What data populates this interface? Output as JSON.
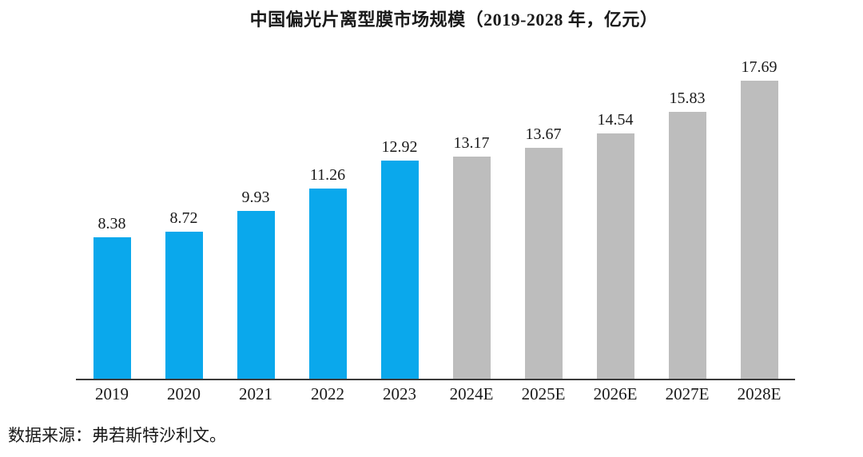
{
  "title": "中国偏光片离型膜市场规模（2019-2028 年，亿元）",
  "source_note": "数据来源：弗若斯特沙利文。",
  "colors": {
    "actual_bar": "#0aa8ec",
    "forecast_bar": "#bdbdbd",
    "axis": "#3b3b3b",
    "text": "#1a1a1a"
  },
  "chart_data": {
    "type": "bar",
    "title": "中国偏光片离型膜市场规模（2019-2028 年，亿元）",
    "categories": [
      "2019",
      "2020",
      "2021",
      "2022",
      "2023",
      "2024E",
      "2025E",
      "2026E",
      "2027E",
      "2028E"
    ],
    "values": [
      8.38,
      8.72,
      9.93,
      11.26,
      12.92,
      13.17,
      13.67,
      14.54,
      15.83,
      17.69
    ],
    "unit": "亿元",
    "xlabel": "",
    "ylabel": "",
    "ylim": [
      0,
      19.8
    ],
    "value_labels": true,
    "grid": false,
    "legend": "none",
    "forecast_suffix": "E",
    "actual_years": [
      "2019",
      "2020",
      "2021",
      "2022",
      "2023"
    ],
    "forecast_years": [
      "2024E",
      "2025E",
      "2026E",
      "2027E",
      "2028E"
    ]
  }
}
